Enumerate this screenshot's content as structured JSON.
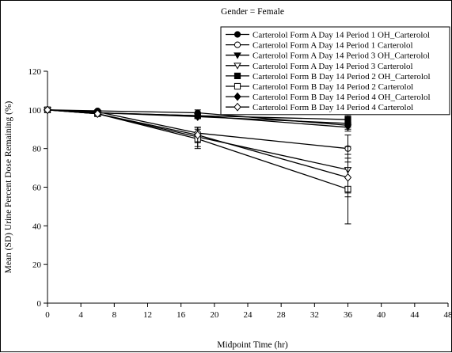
{
  "chart_data": {
    "type": "line",
    "title": "Gender = Female",
    "xlabel": "Midpoint Time (hr)",
    "ylabel": "Mean (SD) Urine Percent Dose Remaining (%)",
    "xlim": [
      0,
      48
    ],
    "ylim": [
      0,
      120
    ],
    "x_ticks": [
      "0",
      "4",
      "8",
      "12",
      "16",
      "20",
      "24",
      "28",
      "32",
      "36",
      "40",
      "44",
      "48"
    ],
    "y_ticks": [
      "0",
      "20",
      "40",
      "60",
      "80",
      "100",
      "120"
    ],
    "x_tick_values": [
      0,
      4,
      8,
      12,
      16,
      20,
      24,
      28,
      32,
      36,
      40,
      44,
      48
    ],
    "y_tick_values": [
      0,
      20,
      40,
      60,
      80,
      100,
      120
    ],
    "legend_position": "top-right",
    "grid": false,
    "x": [
      0,
      6,
      18,
      36
    ],
    "series": [
      {
        "name": "Carterolol Form A  Day 14 Period 1 OH_Carterolol",
        "marker": "circle-filled",
        "values": [
          100,
          99.5,
          98.5,
          92
        ],
        "sd": [
          0,
          0.5,
          1.5,
          2
        ]
      },
      {
        "name": "Carterolol Form A  Day 14 Period 1 Carterolol",
        "marker": "circle-open",
        "values": [
          100,
          99,
          88,
          80
        ],
        "sd": [
          0,
          0.5,
          3,
          7
        ]
      },
      {
        "name": "Carterolol Form A  Day 14 Period 3 OH_Carterolol",
        "marker": "triangle-down-filled",
        "values": [
          100,
          98.5,
          97,
          91
        ],
        "sd": [
          0,
          0.5,
          1.5,
          2
        ]
      },
      {
        "name": "Carterolol Form A  Day 14 Period 3 Carterolol",
        "marker": "triangle-down-open",
        "values": [
          100,
          98,
          86,
          69
        ],
        "sd": [
          0,
          1,
          5,
          12
        ]
      },
      {
        "name": "Carterolol Form B  Day 14 Period 2 OH_Carterolol",
        "marker": "square-filled",
        "values": [
          100,
          98.5,
          97,
          95
        ],
        "sd": [
          0,
          0.5,
          1,
          2
        ]
      },
      {
        "name": "Carterolol Form B  Day 14 Period 2 Carterolol",
        "marker": "square-open",
        "values": [
          100,
          98,
          85,
          59
        ],
        "sd": [
          0,
          1,
          5,
          18
        ]
      },
      {
        "name": "Carterolol Form B  Day 14 Period 4 OH_Carterolol",
        "marker": "diamond-filled",
        "values": [
          100,
          98.5,
          96.5,
          93
        ],
        "sd": [
          0,
          0.5,
          1,
          2
        ]
      },
      {
        "name": "Carterolol Form B  Day 14 Period 4 Carterolol",
        "marker": "diamond-open",
        "values": [
          100,
          98,
          87,
          65
        ],
        "sd": [
          0,
          1,
          4,
          10
        ]
      }
    ]
  }
}
